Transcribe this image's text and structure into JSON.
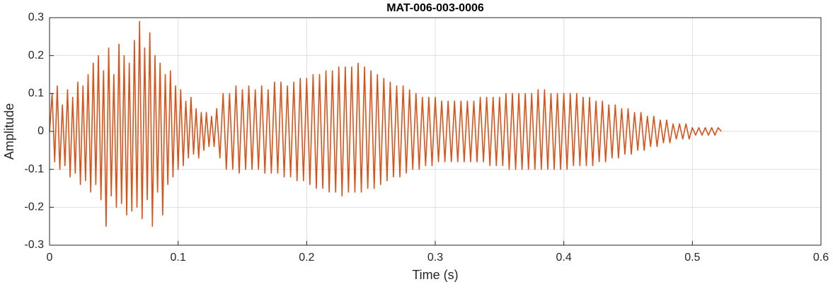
{
  "chart_data": {
    "type": "line",
    "title": "MAT-006-003-0006",
    "xlabel": "Time (s)",
    "ylabel": "Amplitude",
    "color": "#D95319",
    "grid": true,
    "xlim": [
      0,
      0.6
    ],
    "xticks": [
      0,
      0.1,
      0.2,
      0.3,
      0.4,
      0.5,
      0.6
    ],
    "ylim": [
      -0.3,
      0.3
    ],
    "yticks": [
      -0.3,
      -0.2,
      -0.1,
      0,
      0.1,
      0.2,
      0.3
    ],
    "x": [
      0,
      0.002,
      0.004,
      0.006,
      0.008,
      0.01,
      0.012,
      0.014,
      0.016,
      0.018,
      0.02,
      0.022,
      0.024,
      0.026,
      0.028,
      0.03,
      0.032,
      0.034,
      0.036,
      0.038,
      0.04,
      0.042,
      0.044,
      0.046,
      0.048,
      0.05,
      0.052,
      0.054,
      0.056,
      0.058,
      0.06,
      0.062,
      0.064,
      0.066,
      0.068,
      0.07,
      0.072,
      0.074,
      0.076,
      0.078,
      0.08,
      0.082,
      0.084,
      0.086,
      0.088,
      0.09,
      0.092,
      0.094,
      0.096,
      0.098,
      0.1,
      0.102,
      0.104,
      0.106,
      0.108,
      0.11,
      0.112,
      0.114,
      0.116,
      0.118,
      0.12,
      0.122,
      0.124,
      0.126,
      0.128,
      0.13,
      0.1325,
      0.135,
      0.1375,
      0.14,
      0.1425,
      0.145,
      0.1475,
      0.15,
      0.1525,
      0.155,
      0.1575,
      0.16,
      0.1625,
      0.165,
      0.1675,
      0.17,
      0.1725,
      0.175,
      0.1775,
      0.18,
      0.1825,
      0.185,
      0.1875,
      0.19,
      0.1925,
      0.195,
      0.1975,
      0.2,
      0.2025,
      0.205,
      0.2075,
      0.21,
      0.2125,
      0.215,
      0.2175,
      0.22,
      0.2225,
      0.225,
      0.2275,
      0.23,
      0.2325,
      0.235,
      0.2375,
      0.24,
      0.2425,
      0.245,
      0.2475,
      0.25,
      0.2525,
      0.255,
      0.2575,
      0.26,
      0.2625,
      0.265,
      0.2675,
      0.27,
      0.2725,
      0.275,
      0.2775,
      0.28,
      0.2825,
      0.285,
      0.2875,
      0.29,
      0.2925,
      0.295,
      0.2975,
      0.3,
      0.3025,
      0.305,
      0.3075,
      0.31,
      0.3125,
      0.315,
      0.3175,
      0.32,
      0.3225,
      0.325,
      0.3275,
      0.33,
      0.3325,
      0.335,
      0.3375,
      0.34,
      0.3425,
      0.345,
      0.3475,
      0.35,
      0.3525,
      0.355,
      0.3575,
      0.36,
      0.3625,
      0.365,
      0.3675,
      0.37,
      0.3725,
      0.375,
      0.3775,
      0.38,
      0.3825,
      0.385,
      0.3875,
      0.39,
      0.3925,
      0.395,
      0.3975,
      0.4,
      0.4025,
      0.405,
      0.4075,
      0.41,
      0.4125,
      0.415,
      0.4175,
      0.42,
      0.4225,
      0.425,
      0.4275,
      0.43,
      0.4325,
      0.435,
      0.4375,
      0.44,
      0.4425,
      0.445,
      0.4475,
      0.45,
      0.4525,
      0.455,
      0.4575,
      0.46,
      0.4625,
      0.465,
      0.4675,
      0.47,
      0.4725,
      0.475,
      0.4775,
      0.48,
      0.4825,
      0.485,
      0.4875,
      0.49,
      0.4925,
      0.495,
      0.4975,
      0.5,
      0.5025,
      0.505,
      0.5075,
      0.51,
      0.5125,
      0.515,
      0.5175,
      0.52,
      0.5225
    ],
    "values": [
      0,
      0.1,
      -0.08,
      0.12,
      -0.1,
      0.07,
      -0.09,
      0.11,
      -0.12,
      0.09,
      -0.11,
      0.13,
      -0.14,
      0.12,
      -0.13,
      0.15,
      -0.16,
      0.18,
      -0.14,
      0.2,
      -0.18,
      0.16,
      -0.25,
      0.22,
      -0.17,
      0.15,
      -0.2,
      0.23,
      -0.19,
      0.2,
      -0.22,
      0.18,
      -0.21,
      0.24,
      -0.2,
      0.29,
      -0.23,
      0.22,
      -0.18,
      0.26,
      -0.25,
      0.2,
      -0.16,
      0.18,
      -0.22,
      0.15,
      -0.14,
      0.16,
      -0.12,
      0.12,
      -0.1,
      0.11,
      -0.09,
      0.08,
      -0.07,
      0.09,
      -0.06,
      0.06,
      -0.07,
      0.05,
      -0.05,
      0.05,
      -0.04,
      0.04,
      -0.04,
      0.06,
      -0.07,
      0.1,
      -0.1,
      0.1,
      -0.1,
      0.12,
      -0.11,
      0.11,
      -0.1,
      0.12,
      -0.1,
      0.11,
      -0.1,
      0.12,
      -0.11,
      0.11,
      -0.11,
      0.13,
      -0.11,
      0.13,
      -0.12,
      0.12,
      -0.12,
      0.13,
      -0.13,
      0.14,
      -0.13,
      0.14,
      -0.14,
      0.15,
      -0.15,
      0.15,
      -0.15,
      0.16,
      -0.16,
      0.16,
      -0.16,
      0.17,
      -0.17,
      0.17,
      -0.16,
      0.17,
      -0.16,
      0.18,
      -0.16,
      0.17,
      -0.15,
      0.16,
      -0.15,
      0.15,
      -0.14,
      0.14,
      -0.13,
      0.13,
      -0.12,
      0.12,
      -0.12,
      0.12,
      -0.11,
      0.11,
      -0.1,
      0.1,
      -0.1,
      0.09,
      -0.09,
      0.09,
      -0.09,
      0.09,
      -0.08,
      0.08,
      -0.08,
      0.08,
      -0.08,
      0.08,
      -0.08,
      0.08,
      -0.08,
      0.08,
      -0.08,
      0.08,
      -0.08,
      0.09,
      -0.08,
      0.09,
      -0.09,
      0.09,
      -0.09,
      0.09,
      -0.09,
      0.1,
      -0.1,
      0.1,
      -0.1,
      0.1,
      -0.1,
      0.1,
      -0.1,
      0.1,
      -0.1,
      0.11,
      -0.1,
      0.11,
      -0.1,
      0.1,
      -0.1,
      0.1,
      -0.1,
      0.1,
      -0.1,
      0.1,
      -0.09,
      0.1,
      -0.09,
      0.09,
      -0.09,
      0.09,
      -0.09,
      0.08,
      -0.08,
      0.08,
      -0.08,
      0.07,
      -0.07,
      0.07,
      -0.07,
      0.06,
      -0.06,
      0.06,
      -0.06,
      0.05,
      -0.05,
      0.05,
      -0.05,
      0.04,
      -0.04,
      0.04,
      -0.04,
      0.03,
      -0.03,
      0.03,
      -0.03,
      0.02,
      -0.02,
      0.02,
      -0.02,
      0.02,
      -0.02,
      0.01,
      -0.01,
      0.01,
      -0.01,
      0.01,
      -0.01,
      0.01,
      -0.01,
      0.01,
      0
    ]
  }
}
